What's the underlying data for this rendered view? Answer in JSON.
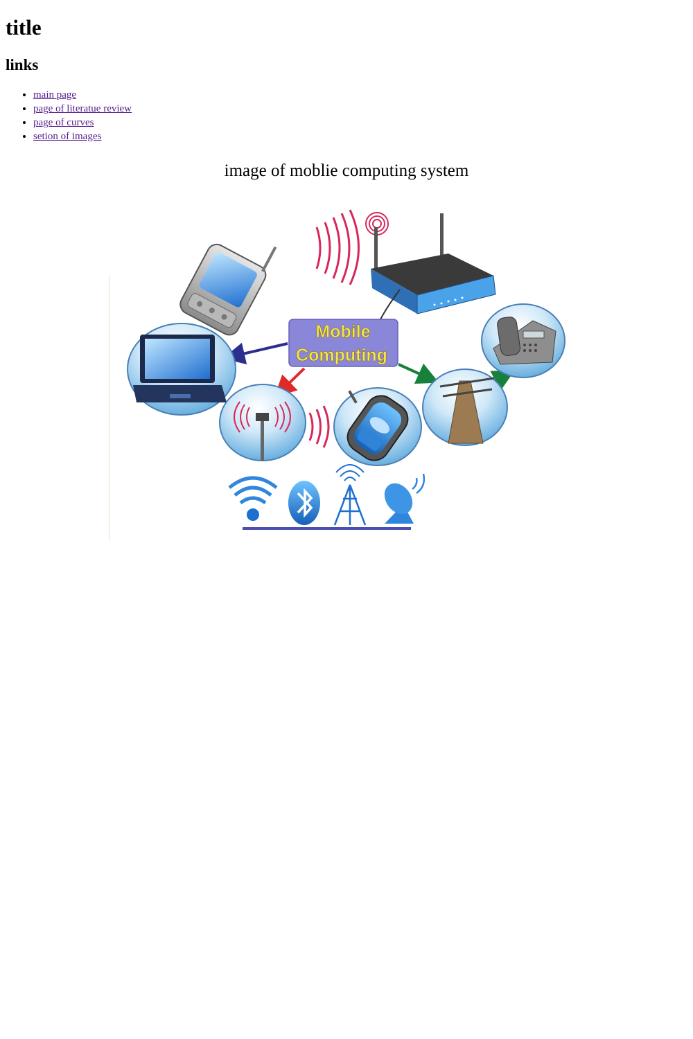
{
  "page": {
    "title": "title",
    "links_heading": "links",
    "links": [
      {
        "label": "main page"
      },
      {
        "label": "page of literatue review"
      },
      {
        "label": "page of curves"
      },
      {
        "label": "setion of images"
      }
    ],
    "caption": "image of moblie computing system"
  },
  "figure": {
    "center_label_line1": "Mobile",
    "center_label_line2": "Computing",
    "icons": [
      "pda-icon",
      "router-icon",
      "laptop-icon",
      "cell-tower-icon",
      "mobile-phone-icon",
      "telephone-pole-icon",
      "desk-phone-icon",
      "wifi-icon",
      "bluetooth-icon",
      "antenna-tower-icon",
      "satellite-dish-icon"
    ],
    "colors": {
      "center_box": "#8a86d8",
      "center_text": "#f5e84a",
      "arrow_blue": "#2d2f8f",
      "arrow_red": "#e02a2a",
      "arrow_green": "#17803a",
      "signal": "#d8285a",
      "underline": "#4a4fb0"
    }
  }
}
